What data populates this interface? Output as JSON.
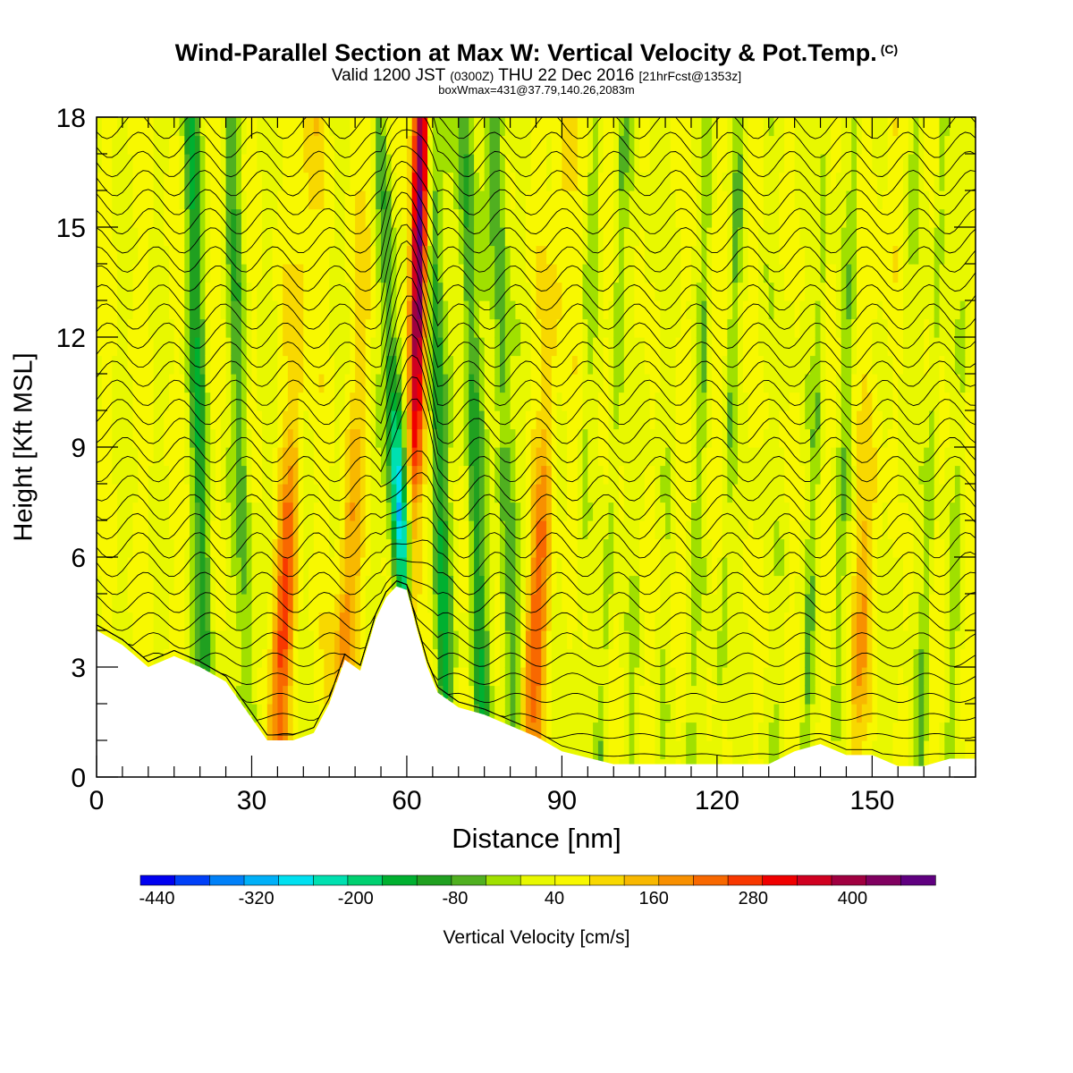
{
  "title": "Wind-Parallel Section at Max W: Vertical Velocity & Pot.Temp.",
  "copyright_mark": "(C)",
  "subtitle": {
    "valid": "Valid 1200 JST",
    "utc": "(0300Z)",
    "date": "THU 22 Dec 2016",
    "fcst": "[21hrFcst@1353z]"
  },
  "box_info": "boxWmax=431@37.79,140.26,2083m",
  "chart_data": {
    "type": "heatmap",
    "xlabel": "Distance [nm]",
    "ylabel": "Height [Kft MSL]",
    "xlim": [
      0,
      170
    ],
    "ylim": [
      0,
      18
    ],
    "x_ticks": [
      0,
      30,
      60,
      90,
      120,
      150
    ],
    "y_ticks": [
      0,
      3,
      6,
      9,
      12,
      15,
      18
    ],
    "colorbar": {
      "label": "Vertical Velocity [cm/s]",
      "range": [
        -460,
        500
      ],
      "step": 40,
      "tick_labels": [
        -440,
        -320,
        -200,
        -80,
        40,
        160,
        280,
        400
      ],
      "colors": [
        "#0000f0",
        "#0040f8",
        "#0080f8",
        "#00b0f8",
        "#00e0f0",
        "#00e0b0",
        "#00d070",
        "#00b030",
        "#20a020",
        "#50b020",
        "#a0e000",
        "#e8f800",
        "#f8f800",
        "#f8d800",
        "#f8b800",
        "#f89000",
        "#f86800",
        "#f83800",
        "#f00000",
        "#d00020",
        "#a00040",
        "#800060",
        "#600080"
      ]
    },
    "updraft_bands": [
      {
        "x": 36,
        "w_max": 220
      },
      {
        "x": 48,
        "w_max": 160
      },
      {
        "x": 62,
        "w_max": 431
      },
      {
        "x": 85,
        "w_max": 200
      },
      {
        "x": 148,
        "w_max": 120
      }
    ],
    "downdraft_bands": [
      {
        "x": 20,
        "w_min": -140
      },
      {
        "x": 28,
        "w_min": -100
      },
      {
        "x": 58,
        "w_min": -360
      },
      {
        "x": 66,
        "w_min": -160
      },
      {
        "x": 73,
        "w_min": -140
      },
      {
        "x": 79,
        "w_min": -120
      }
    ],
    "terrain_height_kft": {
      "x": [
        0,
        5,
        10,
        15,
        20,
        25,
        30,
        33,
        38,
        42,
        45,
        48,
        51,
        54,
        56,
        58,
        60,
        62,
        64,
        66,
        70,
        75,
        80,
        85,
        90,
        100,
        110,
        120,
        130,
        135,
        140,
        145,
        150,
        155,
        160,
        165,
        170
      ],
      "z": [
        4.0,
        3.6,
        3.0,
        3.3,
        3.0,
        2.6,
        1.6,
        1.0,
        1.0,
        1.2,
        2.0,
        3.2,
        2.9,
        4.3,
        4.9,
        5.2,
        5.1,
        4.0,
        3.0,
        2.3,
        1.9,
        1.7,
        1.4,
        1.1,
        0.7,
        0.35,
        0.35,
        0.35,
        0.35,
        0.7,
        0.9,
        0.6,
        0.6,
        0.3,
        0.3,
        0.5,
        0.5
      ]
    }
  }
}
